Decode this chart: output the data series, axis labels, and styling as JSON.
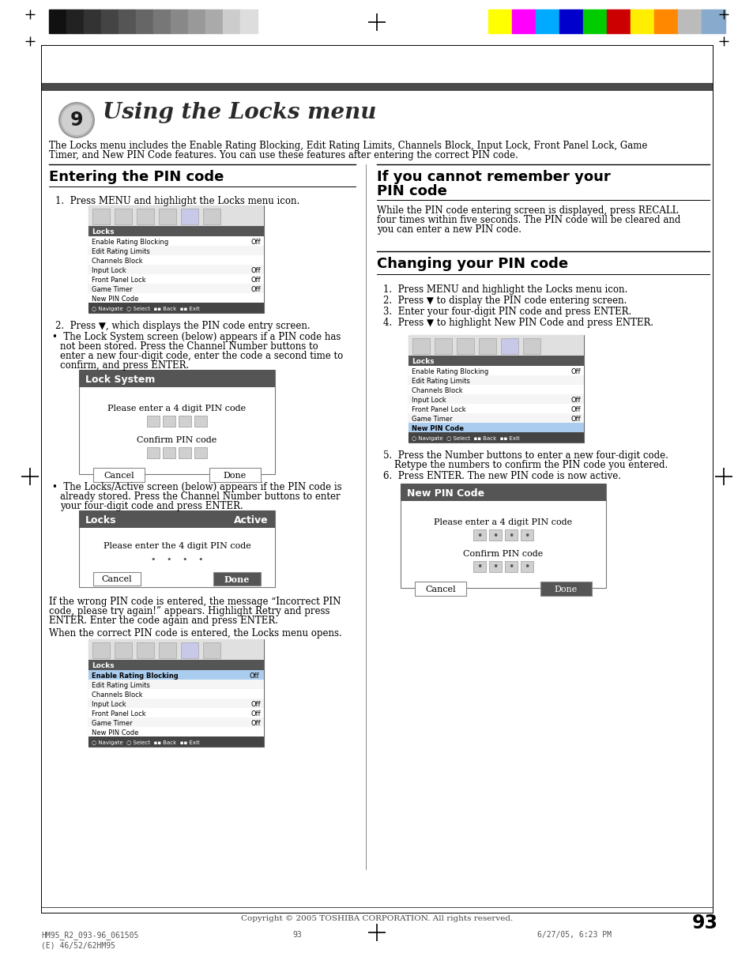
{
  "page_title": "Using the Locks menu",
  "chapter_num": "9",
  "intro_text": "The Locks menu includes the Enable Rating Blocking, Edit Rating Limits, Channels Block, Input Lock, Front Panel Lock, Game\nTimer, and New PIN Code features. You can use these features after entering the correct PIN code.",
  "left_section_title": "Entering the PIN code",
  "right_section1_title_line1": "If you cannot remember your",
  "right_section1_title_line2": "PIN code",
  "right_section1_text_line1": "While the PIN code entering screen is displayed, press RECALL",
  "right_section1_text_line2": "four times within five seconds. The PIN code will be cleared and",
  "right_section1_text_line3": "you can enter a new PIN code.",
  "right_section2_title": "Changing your PIN code",
  "footer_text": "Copyright © 2005 TOSHIBA CORPORATION. All rights reserved.",
  "page_num": "93",
  "bg_color": "#ffffff",
  "header_bar_color": "#4a4a4a",
  "gray_colors": [
    "#111111",
    "#222222",
    "#333333",
    "#444444",
    "#555555",
    "#666666",
    "#777777",
    "#888888",
    "#999999",
    "#aaaaaa",
    "#cccccc",
    "#dddddd"
  ],
  "color_bars": [
    "#ffff00",
    "#ff00ff",
    "#00aaff",
    "#0000cc",
    "#00cc00",
    "#cc0000",
    "#ffee00",
    "#ff8800",
    "#bbbbbb",
    "#88aacc"
  ]
}
